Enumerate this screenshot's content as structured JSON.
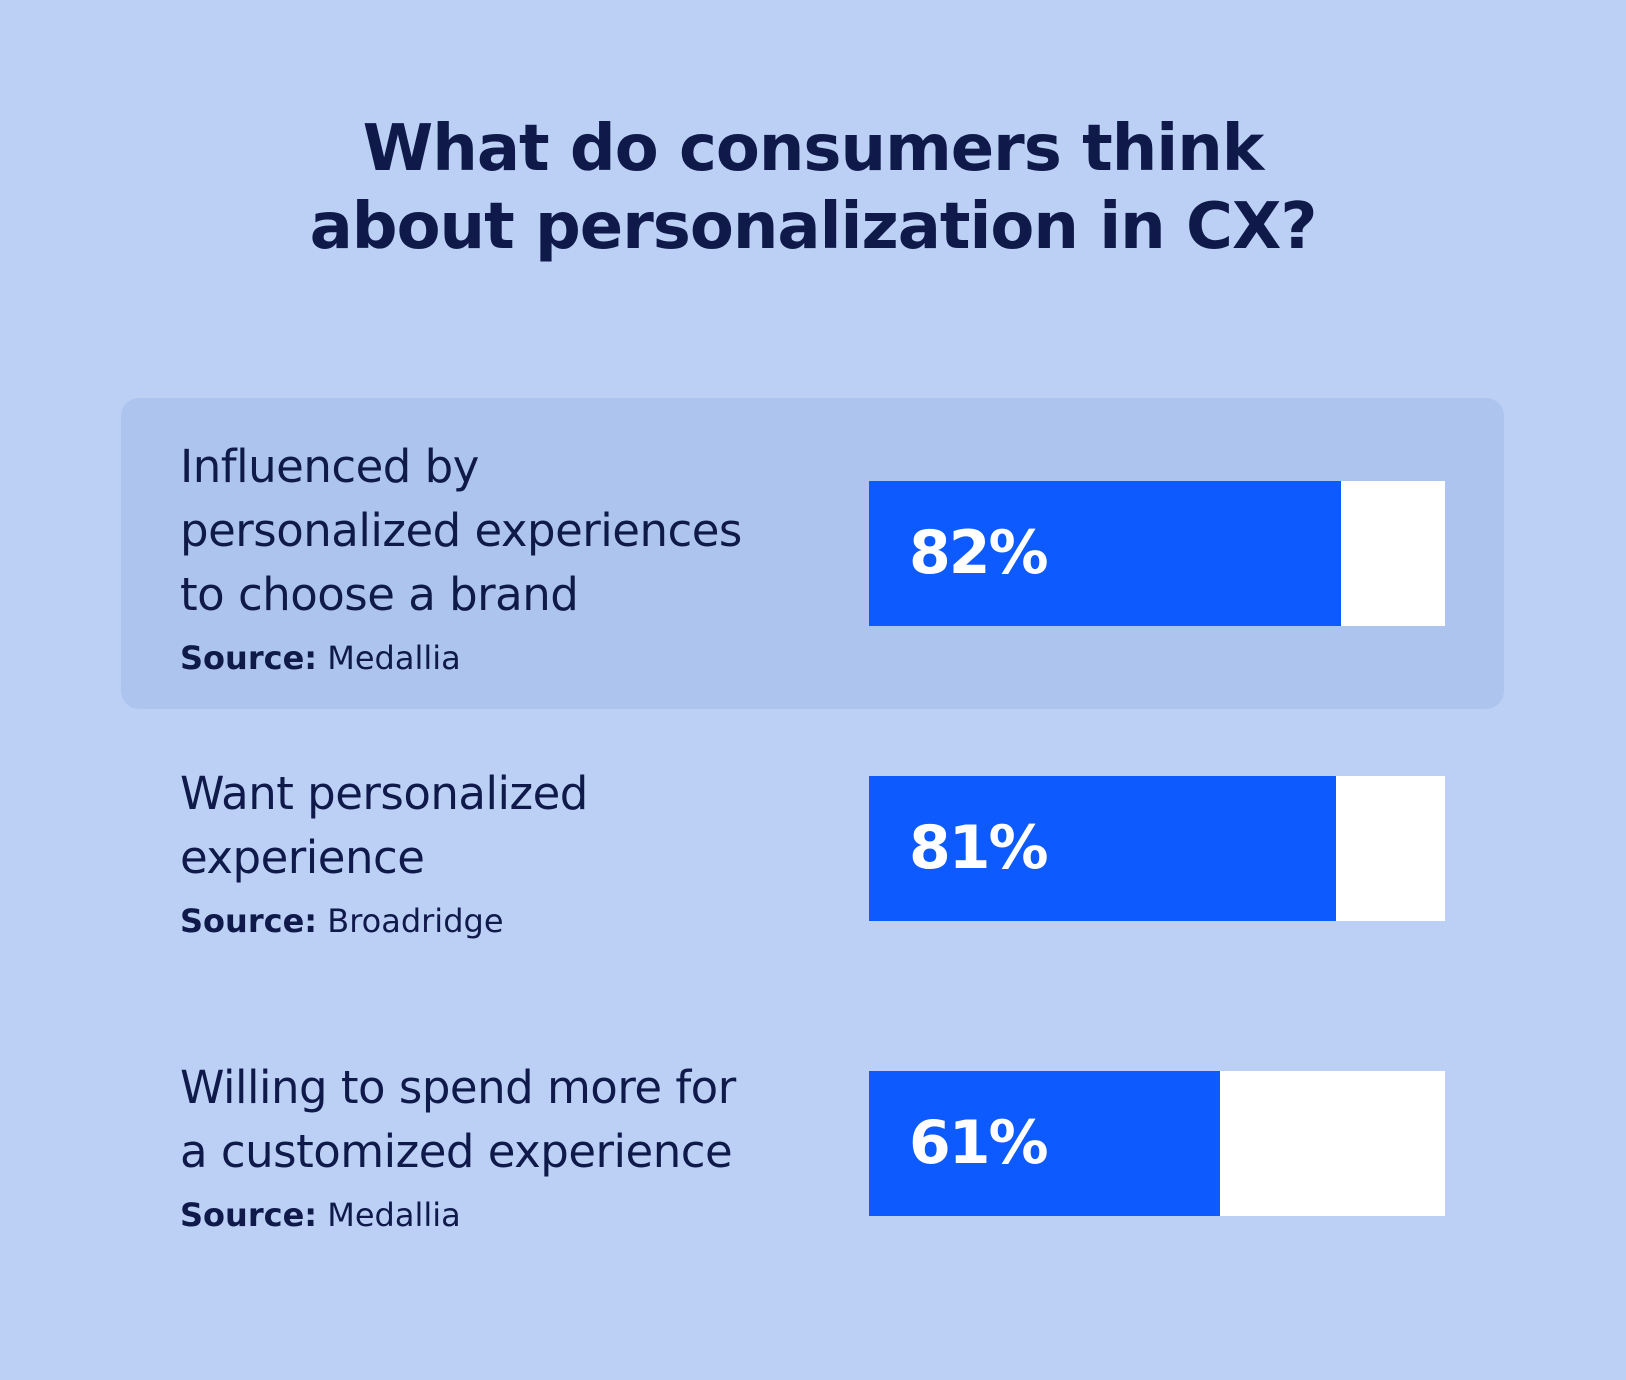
{
  "chart_data": {
    "type": "bar",
    "title": "What do consumers think\nabout personalization in CX?",
    "categories": [
      "Influenced by\npersonalized experiences\nto choose a brand",
      "Want personalized\nexperience",
      "Willing to spend more for\na customized experience"
    ],
    "sources": [
      {
        "label": "Source:",
        "name": "Medallia"
      },
      {
        "label": "Source:",
        "name": "Broadridge"
      },
      {
        "label": "Source:",
        "name": "Medallia"
      }
    ],
    "values": [
      82,
      81,
      61
    ],
    "value_labels": [
      "82%",
      "81%",
      "61%"
    ],
    "xlim": [
      0,
      100
    ],
    "color": "#0d5bff",
    "track_color": "#ffffff",
    "highlight": 0
  }
}
